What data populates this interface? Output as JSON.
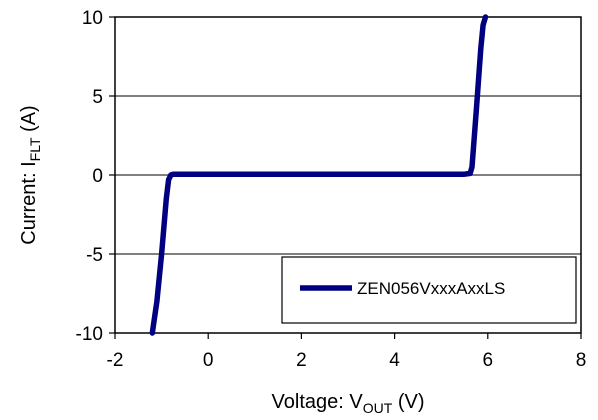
{
  "chart_data": {
    "type": "line",
    "xlabel": {
      "main": "Voltage: V",
      "sub": "OUT",
      "unit": " (V)"
    },
    "ylabel": {
      "main": "Current: I",
      "sub": "FLT",
      "unit": " (A)"
    },
    "xlim": [
      -2,
      8
    ],
    "ylim": [
      -10,
      10
    ],
    "xticks": [
      -2,
      0,
      2,
      4,
      6,
      8
    ],
    "yticks": [
      -10,
      -5,
      0,
      5,
      10
    ],
    "grid": "horizontal",
    "legend_position": "bottom-right",
    "series": [
      {
        "name": "ZEN056VxxxAxxLS",
        "color": "#000080",
        "x": [
          -1.2,
          -1.1,
          -1.0,
          -0.9,
          -0.85,
          -0.8,
          -0.75,
          -0.7,
          0,
          2,
          4,
          5.5,
          5.62,
          5.66,
          5.7,
          5.75,
          5.8,
          5.85,
          5.9,
          5.95
        ],
        "y": [
          -10,
          -8,
          -5,
          -1.5,
          -0.3,
          0,
          0.05,
          0.05,
          0.05,
          0.05,
          0.05,
          0.05,
          0.1,
          0.5,
          2,
          4,
          6,
          8,
          9.5,
          10
        ]
      }
    ]
  }
}
